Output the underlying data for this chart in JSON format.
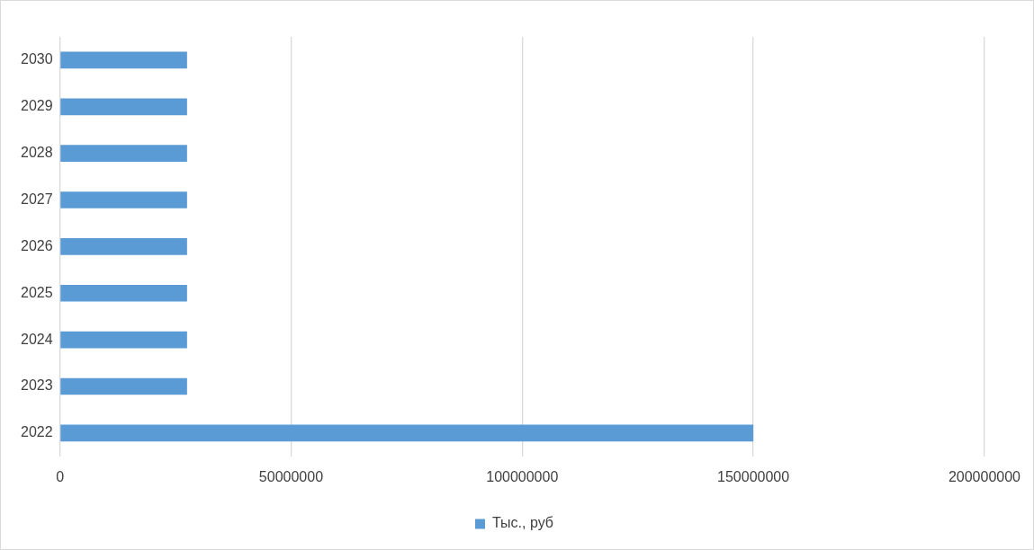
{
  "chart_data": {
    "type": "bar",
    "orientation": "horizontal",
    "categories": [
      "2030",
      "2029",
      "2028",
      "2027",
      "2026",
      "2025",
      "2024",
      "2023",
      "2022"
    ],
    "series": [
      {
        "name": "Тыс., руб",
        "color": "#5b9bd5",
        "values": [
          27500000,
          27500000,
          27500000,
          27500000,
          27500000,
          27500000,
          27500000,
          27500000,
          150000000
        ]
      }
    ],
    "xlim": [
      0,
      200000000
    ],
    "xticks": [
      0,
      50000000,
      100000000,
      150000000,
      200000000
    ],
    "grid": "x",
    "legend": "bottom"
  }
}
